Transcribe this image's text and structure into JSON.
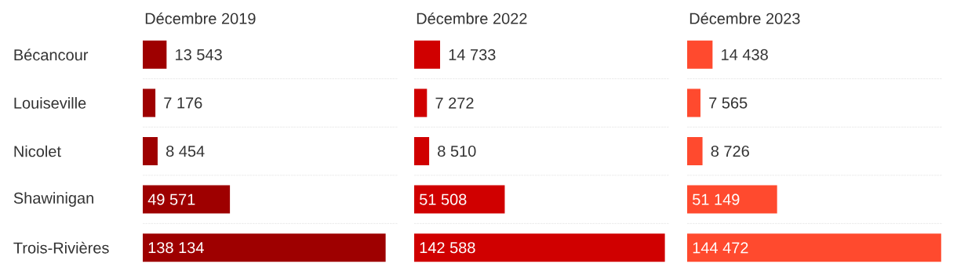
{
  "chart_data": [
    {
      "type": "bar",
      "orientation": "horizontal",
      "title": "Décembre 2019",
      "categories": [
        "Bécancour",
        "Louiseville",
        "Nicolet",
        "Shawinigan",
        "Trois-Rivières"
      ],
      "values": [
        13543,
        7176,
        8454,
        49571,
        138134
      ],
      "value_labels": [
        "13 543",
        "7 176",
        "8 454",
        "49 571",
        "138 134"
      ],
      "color": "#9e0000",
      "xlim": [
        0,
        145000
      ],
      "grid": "y",
      "tick_labels": "y"
    },
    {
      "type": "bar",
      "orientation": "horizontal",
      "title": "Décembre 2022",
      "categories": [
        null,
        null,
        null,
        null,
        null
      ],
      "values": [
        14733,
        7272,
        8510,
        51508,
        142588
      ],
      "value_labels": [
        "14 733",
        "7 272",
        "8 510",
        "51 508",
        "142 588"
      ],
      "color": "#d00000",
      "xlim": [
        0,
        145000
      ],
      "grid": "y",
      "tick_labels": false
    },
    {
      "type": "bar",
      "orientation": "horizontal",
      "title": "Décembre 2023",
      "categories": [
        null,
        null,
        null,
        null,
        null
      ],
      "values": [
        14438,
        7565,
        8726,
        51149,
        144472
      ],
      "value_labels": [
        "14 438",
        "7 565",
        "8 726",
        "51 149",
        "144 472"
      ],
      "color": "#ff4a2e",
      "xlim": [
        0,
        145000
      ],
      "grid": "y",
      "tick_labels": false
    }
  ]
}
